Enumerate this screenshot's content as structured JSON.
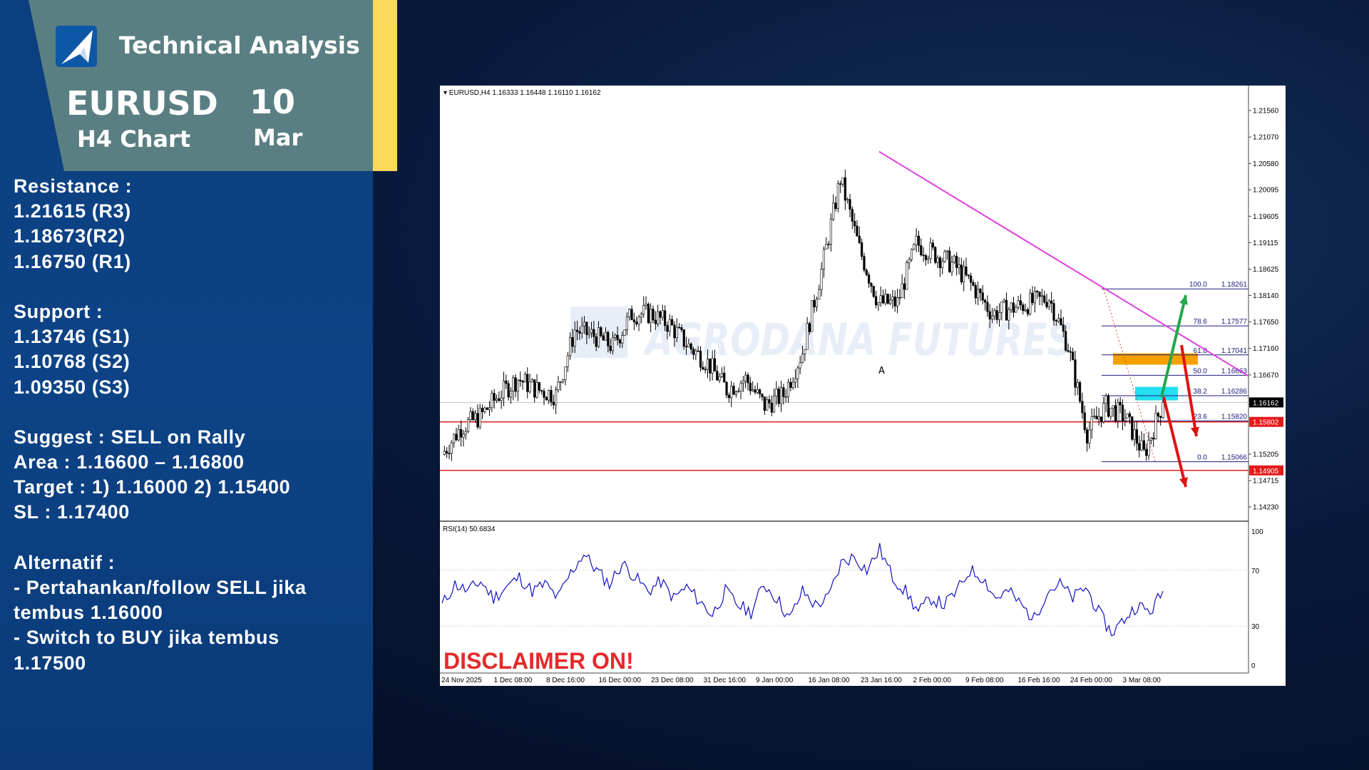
{
  "header": {
    "title": "Technical Analysis",
    "symbol": "EURUSD",
    "timeframe": "H4 Chart",
    "day": "10",
    "month": "Mar",
    "logo_icon": "arrow-logo-icon"
  },
  "colors": {
    "panel": "#0b3f7f",
    "header": "#5a7f82",
    "accent": "#fdd85a",
    "trendline": "#e040e0",
    "support_line": "#e02020",
    "fib": "#1a1a80",
    "sell_zone": "#f5a000",
    "entry_zone": "#22e0f0",
    "buy_arrow": "#1fa84a",
    "sell_arrow": "#e01010",
    "rsi": "#1010c0"
  },
  "info": {
    "lines": [
      "Resistance :",
      "1.21615 (R3)",
      "1.18673(R2)",
      "1.16750 (R1)",
      "",
      "Support :",
      "1.13746 (S1)",
      "1.10768  (S2)",
      "1.09350  (S3)",
      "",
      "Suggest :  SELL on Rally",
      "Area : 1.16600 – 1.16800",
      "Target : 1) 1.16000 2) 1.15400",
      "SL : 1.17400",
      "",
      "Alternatif :",
      "- Pertahankan/follow SELL jika",
      "tembus 1.16000",
      "- Switch to BUY jika tembus",
      "1.17500"
    ]
  },
  "chart_data": {
    "type": "candlestick",
    "title": "EURUSD,H4  1.16333 1.16448 1.16110 1.16162",
    "watermark": "AGRODANA FUTURES",
    "annotation": "A",
    "disclaimer": "DISCLAIMER ON!",
    "ylim": [
      1.14,
      1.219
    ],
    "y_ticks": [
      "1.21560",
      "1.21070",
      "1.20580",
      "1.20095",
      "1.19605",
      "1.19115",
      "1.18625",
      "1.18140",
      "1.17650",
      "1.17160",
      "1.16670",
      "1.15205",
      "1.14715",
      "1.14230"
    ],
    "x_ticks": [
      "24 Nov 2025",
      "1 Dec 08:00",
      "8 Dec 16:00",
      "16 Dec 00:00",
      "23 Dec 08:00",
      "31 Dec 16:00",
      "9 Jan 00:00",
      "16 Jan 08:00",
      "23 Jan 16:00",
      "2 Feb 00:00",
      "9 Feb 08:00",
      "16 Feb 16:00",
      "24 Feb 00:00",
      "3 Mar 08:00"
    ],
    "close": [
      1.152,
      1.157,
      1.159,
      1.163,
      1.166,
      1.164,
      1.163,
      1.175,
      1.174,
      1.172,
      1.178,
      1.178,
      1.176,
      1.172,
      1.169,
      1.164,
      1.166,
      1.161,
      1.163,
      1.171,
      1.186,
      1.203,
      1.19,
      1.18,
      1.18,
      1.191,
      1.189,
      1.187,
      1.183,
      1.178,
      1.179,
      1.18,
      1.181,
      1.172,
      1.156,
      1.161,
      1.159,
      1.152,
      1.1616
    ],
    "current_price": {
      "label": "1.16162",
      "value": 1.16162
    },
    "hlines": [
      {
        "label": "1.15802",
        "value": 1.15802
      },
      {
        "label": "1.14905",
        "value": 1.14905
      }
    ],
    "fibonacci": [
      {
        "level": "100.0",
        "price": "1.18261"
      },
      {
        "level": "78.6",
        "price": "1.17577"
      },
      {
        "level": "61.8",
        "price": "1.17041"
      },
      {
        "level": "50.0",
        "price": "1.16663"
      },
      {
        "level": "38.2",
        "price": "1.16286"
      },
      {
        "level": "23.6",
        "price": "1.15820"
      },
      {
        "level": "0.0",
        "price": "1.15066"
      }
    ],
    "sell_zone": [
      1.1686,
      1.1707
    ],
    "entry_zone": [
      1.162,
      1.1645
    ],
    "trendline": [
      1.208,
      1.1665
    ],
    "rsi": {
      "label": "RSI(14) 50.6834",
      "levels": [
        "100",
        "70",
        "30",
        "0"
      ],
      "values": [
        45,
        60,
        55,
        62,
        50,
        58,
        65,
        55,
        60,
        50,
        68,
        82,
        70,
        60,
        75,
        65,
        55,
        62,
        50,
        58,
        48,
        38,
        55,
        45,
        40,
        60,
        50,
        35,
        55,
        45,
        50,
        75,
        80,
        70,
        85,
        65,
        55,
        40,
        50,
        45,
        55,
        70,
        65,
        50,
        55,
        45,
        35,
        55,
        60,
        50,
        58,
        40,
        25,
        35,
        45,
        40,
        55
      ]
    }
  }
}
